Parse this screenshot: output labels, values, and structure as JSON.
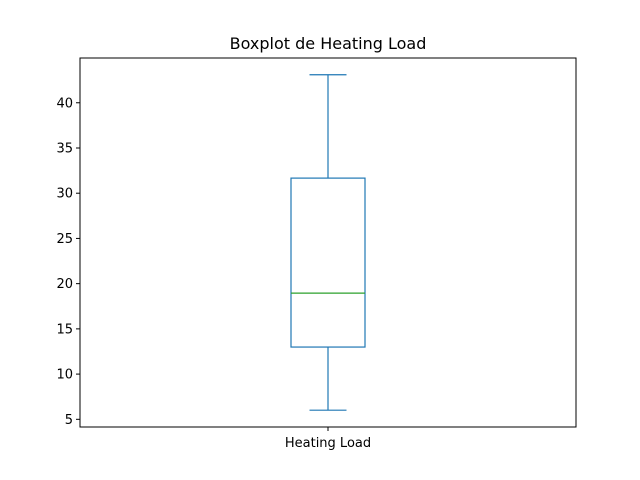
{
  "chart_data": {
    "type": "box",
    "title": "Boxplot de Heating Load",
    "xlabel": "",
    "ylabel": "",
    "categories": [
      "Heating Load"
    ],
    "series": [
      {
        "name": "Heating Load",
        "whisker_low": 6.01,
        "q1": 12.99,
        "median": 18.95,
        "q3": 31.67,
        "whisker_high": 43.1
      }
    ],
    "yticks": [
      5,
      10,
      15,
      20,
      25,
      30,
      35,
      40
    ],
    "ylim": [
      4.15,
      44.95
    ],
    "grid": false,
    "legend": "none",
    "colors": {
      "box": "#1f77b4",
      "median": "#2ca02c",
      "axes": "#000000",
      "background": "#ffffff"
    }
  }
}
